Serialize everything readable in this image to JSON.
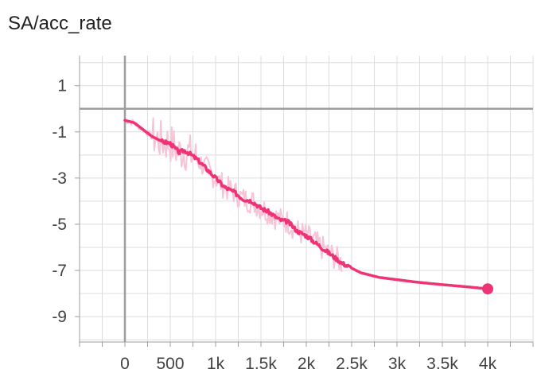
{
  "chart_data": {
    "type": "line",
    "title": "SA/acc_rate",
    "xlabel": "",
    "ylabel": "",
    "xlim": [
      -500,
      4500
    ],
    "ylim": [
      -10.1,
      2.3
    ],
    "grid": true,
    "x_ticks": [
      0,
      500,
      1000,
      1500,
      2000,
      2500,
      3000,
      3500,
      4000
    ],
    "x_tick_labels": [
      "0",
      "500",
      "1k",
      "1.5k",
      "2k",
      "2.5k",
      "3k",
      "3.5k",
      "4k"
    ],
    "y_ticks": [
      1,
      -1,
      -3,
      -5,
      -7,
      -9
    ],
    "y_tick_labels": [
      "1",
      "-1",
      "-3",
      "-5",
      "-7",
      "-9"
    ],
    "colors": {
      "line": "#ee3377",
      "raw": "#f7c4d6",
      "grid": "#dddddd",
      "axis": "#9e9e9e"
    },
    "series": [
      {
        "x": [
          0,
          100,
          200,
          300,
          400,
          500,
          600,
          650,
          700,
          800,
          900,
          1000,
          1100,
          1200,
          1300,
          1400,
          1500,
          1600,
          1700,
          1800,
          1900,
          2000,
          2100,
          2200,
          2300,
          2400,
          2500,
          2600,
          2700,
          2800,
          2900,
          3000,
          3200,
          3400,
          3600,
          3800,
          4000
        ],
        "y": [
          -0.5,
          -0.6,
          -0.9,
          -1.2,
          -1.4,
          -1.5,
          -1.9,
          -1.8,
          -1.9,
          -2.2,
          -2.6,
          -3.0,
          -3.4,
          -3.6,
          -3.9,
          -4.0,
          -4.3,
          -4.5,
          -4.8,
          -4.9,
          -5.3,
          -5.5,
          -5.8,
          -6.1,
          -6.4,
          -6.7,
          -6.9,
          -7.1,
          -7.2,
          -7.3,
          -7.35,
          -7.4,
          -7.5,
          -7.58,
          -7.65,
          -7.72,
          -7.8
        ]
      }
    ]
  }
}
